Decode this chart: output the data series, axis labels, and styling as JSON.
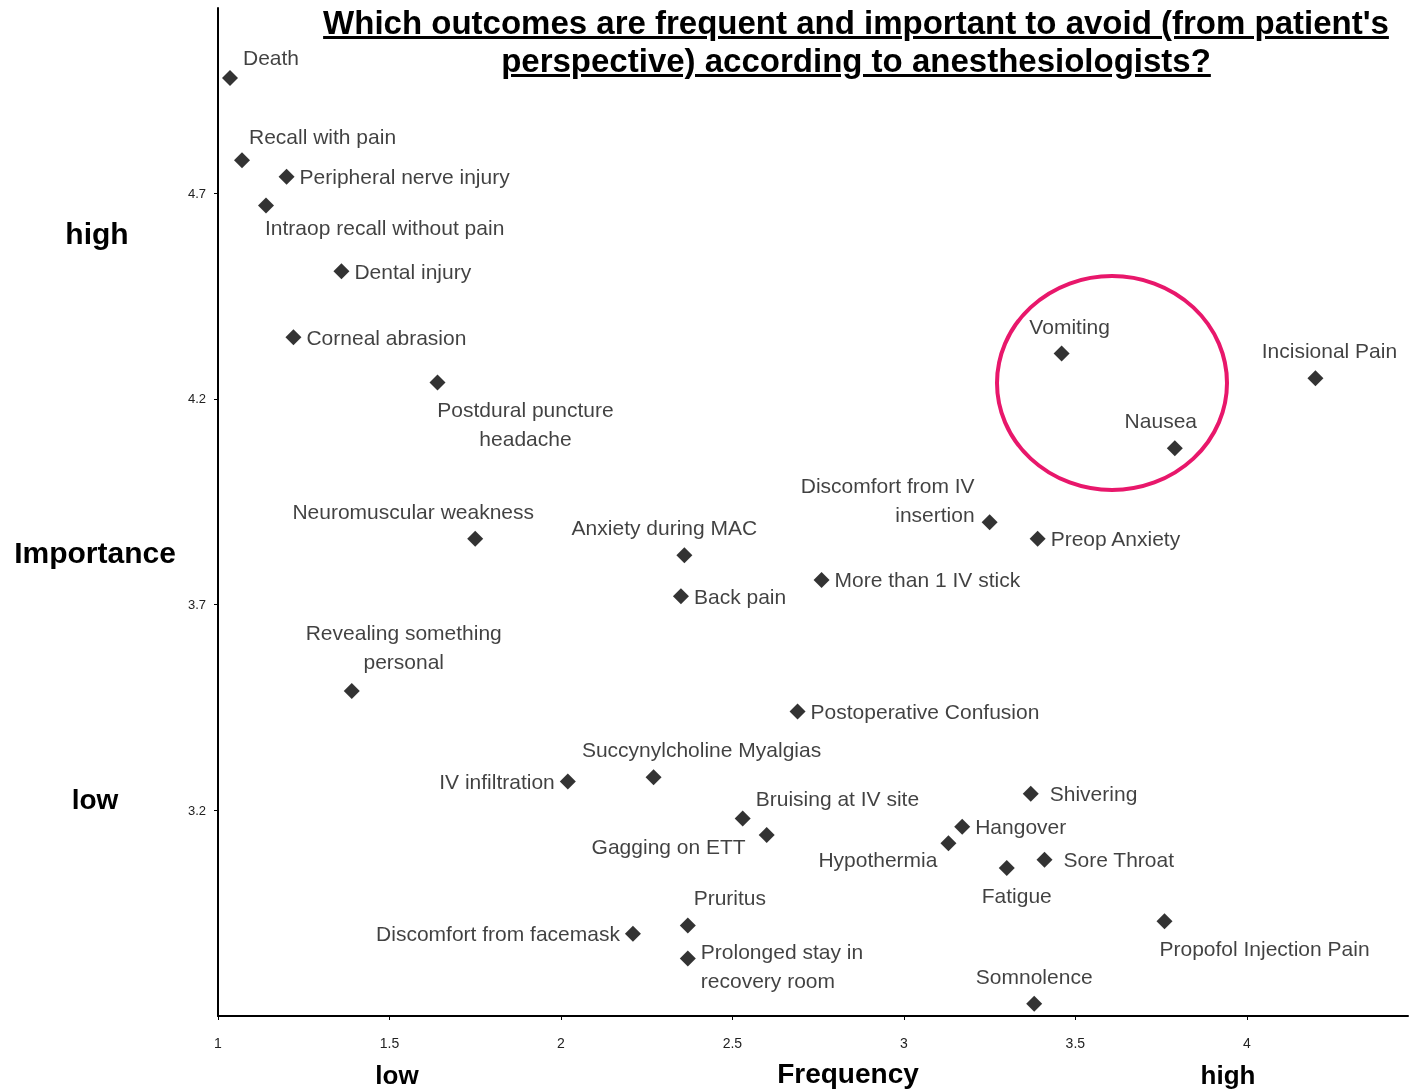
{
  "chart_data": {
    "type": "scatter",
    "title": "Which outcomes are frequent and important to avoid (from patient's perspective) according to anesthesiologists?",
    "xlabel": "Frequency",
    "ylabel": "Importance",
    "annotations": [
      "high",
      "low",
      "low",
      "high"
    ],
    "xlim": [
      1,
      4.47
    ],
    "xticks": [
      1,
      1.5,
      2,
      2.5,
      3,
      3.5,
      4
    ],
    "ylim": [
      2.7,
      5.15
    ],
    "yticks": [
      3.2,
      3.7,
      4.2,
      4.7
    ],
    "grid": false,
    "legend": false,
    "marker": "diamond",
    "series": [
      {
        "name": "Death",
        "color": "#000000",
        "x": [
          1.035
        ],
        "values": [
          4.98
        ]
      },
      {
        "name": "Recall with pain",
        "color": "#000000",
        "x": [
          1.07
        ],
        "values": [
          4.78
        ]
      },
      {
        "name": "Peripheral nerve injury",
        "color": "#000000",
        "x": [
          1.2
        ],
        "values": [
          4.74
        ]
      },
      {
        "name": "Intraop recall without pain",
        "color": "#000000",
        "x": [
          1.14
        ],
        "values": [
          4.67
        ]
      },
      {
        "name": "Dental injury",
        "color": "#000000",
        "x": [
          1.36
        ],
        "values": [
          4.51
        ]
      },
      {
        "name": "Corneal abrasion",
        "color": "#000000",
        "x": [
          1.22
        ],
        "values": [
          4.35
        ]
      },
      {
        "name": "Postdural puncture\nheadache",
        "color": "#000000",
        "x": [
          1.64
        ],
        "values": [
          4.24
        ]
      },
      {
        "name": "Vomiting",
        "color": "#000000",
        "x": [
          3.46
        ],
        "values": [
          4.31
        ]
      },
      {
        "name": "Incisional Pain",
        "color": "#000000",
        "x": [
          4.2
        ],
        "values": [
          4.25
        ]
      },
      {
        "name": "Nausea",
        "color": "#000000",
        "x": [
          3.79
        ],
        "values": [
          4.08
        ]
      },
      {
        "name": "Discomfort from IV\ninsertion",
        "color": "#000000",
        "x": [
          3.25
        ],
        "values": [
          3.9
        ]
      },
      {
        "name": "Preop Anxiety",
        "color": "#000000",
        "x": [
          3.39
        ],
        "values": [
          3.86
        ]
      },
      {
        "name": "Neuromuscular weakness",
        "color": "#000000",
        "x": [
          1.75
        ],
        "values": [
          3.86
        ]
      },
      {
        "name": "Anxiety during MAC",
        "color": "#000000",
        "x": [
          2.36
        ],
        "values": [
          3.82
        ]
      },
      {
        "name": "More than 1 IV stick",
        "color": "#000000",
        "x": [
          2.76
        ],
        "values": [
          3.76
        ]
      },
      {
        "name": "Back pain",
        "color": "#000000",
        "x": [
          2.35
        ],
        "values": [
          3.72
        ]
      },
      {
        "name": "Revealing something\npersonal",
        "color": "#000000",
        "x": [
          1.39
        ],
        "values": [
          3.49
        ]
      },
      {
        "name": "Postoperative Confusion",
        "color": "#000000",
        "x": [
          2.69
        ],
        "values": [
          3.44
        ]
      },
      {
        "name": "IV infiltration",
        "color": "#000000",
        "x": [
          2.02
        ],
        "values": [
          3.27
        ]
      },
      {
        "name": "Succynylcholine Myalgias",
        "color": "#000000",
        "x": [
          2.27
        ],
        "values": [
          3.28
        ]
      },
      {
        "name": "Shivering",
        "color": "#000000",
        "x": [
          3.37
        ],
        "values": [
          3.24
        ]
      },
      {
        "name": "Bruising at IV site",
        "color": "#000000",
        "x": [
          2.53
        ],
        "values": [
          3.18
        ]
      },
      {
        "name": "Gagging on ETT",
        "color": "#000000",
        "x": [
          2.6
        ],
        "values": [
          3.14
        ]
      },
      {
        "name": "Hangover",
        "color": "#000000",
        "x": [
          3.17
        ],
        "values": [
          3.16
        ]
      },
      {
        "name": "Hypothermia",
        "color": "#000000",
        "x": [
          3.13
        ],
        "values": [
          3.12
        ]
      },
      {
        "name": "Sore Throat",
        "color": "#000000",
        "x": [
          3.41
        ],
        "values": [
          3.08
        ]
      },
      {
        "name": "Fatigue",
        "color": "#000000",
        "x": [
          3.3
        ],
        "values": [
          3.06
        ]
      },
      {
        "name": "Propofol Injection Pain",
        "color": "#000000",
        "x": [
          3.76
        ],
        "values": [
          2.93
        ]
      },
      {
        "name": "Pruritus",
        "color": "#000000",
        "x": [
          2.37
        ],
        "values": [
          2.92
        ]
      },
      {
        "name": "Discomfort from facemask",
        "color": "#000000",
        "x": [
          2.21
        ],
        "values": [
          2.9
        ]
      },
      {
        "name": "Prolonged stay in\nrecovery room",
        "color": "#000000",
        "x": [
          2.37
        ],
        "values": [
          2.84
        ]
      },
      {
        "name": "Somnolence",
        "color": "#000000",
        "x": [
          3.38
        ],
        "values": [
          2.73
        ]
      }
    ]
  }
}
